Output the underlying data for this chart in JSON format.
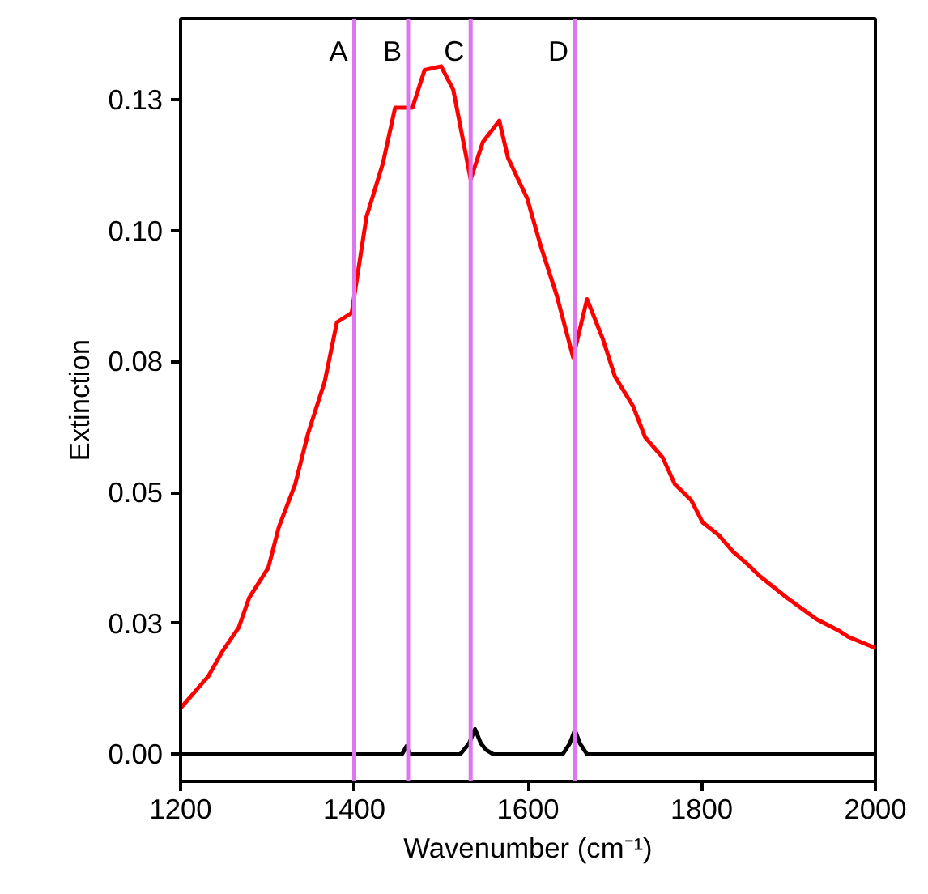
{
  "chart_data": {
    "type": "line",
    "xlabel": "Wavenumber (cm⁻¹)",
    "ylabel": "Extinction",
    "xlim": [
      1200,
      2000
    ],
    "xticks": [
      1200,
      1400,
      1600,
      1800,
      2000
    ],
    "ylim": [
      -0.0052,
      0.1405
    ],
    "yticks": [
      {
        "value": 0,
        "label": "0.00"
      },
      {
        "value": 0.025,
        "label": "0.03"
      },
      {
        "value": 0.05,
        "label": "0.05"
      },
      {
        "value": 0.075,
        "label": "0.08"
      },
      {
        "value": 0.1,
        "label": "0.10"
      },
      {
        "value": 0.125,
        "label": "0.13"
      }
    ],
    "grid": false,
    "marker": "none",
    "line_style": "solid",
    "series": [
      {
        "color": "#ff0000",
        "x": [
          1200,
          1232,
          1248,
          1267,
          1279,
          1301,
          1313,
          1332,
          1347,
          1366,
          1380,
          1397,
          1414,
          1433,
          1447,
          1467,
          1481,
          1500,
          1514,
          1534,
          1548,
          1567,
          1577,
          1599,
          1615,
          1633,
          1652,
          1668,
          1686,
          1700,
          1721,
          1735,
          1755,
          1769,
          1788,
          1801,
          1820,
          1836,
          1854,
          1867,
          1898,
          1932,
          1957,
          1969,
          2000
        ],
        "values": [
          0.0088,
          0.0149,
          0.0196,
          0.0242,
          0.0299,
          0.0356,
          0.0433,
          0.0516,
          0.0614,
          0.0712,
          0.0825,
          0.0843,
          0.1026,
          0.1129,
          0.1235,
          0.1235,
          0.1307,
          0.1314,
          0.1269,
          0.1098,
          0.1169,
          0.121,
          0.1139,
          0.1062,
          0.0969,
          0.0877,
          0.0758,
          0.0869,
          0.0794,
          0.0722,
          0.0665,
          0.0605,
          0.0567,
          0.0516,
          0.0485,
          0.0443,
          0.0418,
          0.0387,
          0.0361,
          0.034,
          0.0299,
          0.0258,
          0.0237,
          0.0224,
          0.0203
        ]
      },
      {
        "color": "#000000",
        "x": [
          1200,
          1455,
          1460,
          1464,
          1522,
          1532,
          1539,
          1546,
          1552,
          1560,
          1640,
          1648,
          1654,
          1660,
          1668,
          2000
        ],
        "values": [
          0,
          0,
          0.0015,
          0,
          0,
          0.002,
          0.0048,
          0.002,
          0.0008,
          0,
          0,
          0.002,
          0.0046,
          0.002,
          0,
          0
        ]
      }
    ],
    "ref_lines": [
      {
        "axis": "x",
        "value": 1400,
        "label": "A",
        "color": "#dd77f0"
      },
      {
        "axis": "x",
        "value": 1462,
        "label": "B",
        "color": "#dd77f0"
      },
      {
        "axis": "x",
        "value": 1534,
        "label": "C",
        "color": "#dd77f0"
      },
      {
        "axis": "x",
        "value": 1654,
        "label": "D",
        "color": "#dd77f0"
      }
    ]
  }
}
